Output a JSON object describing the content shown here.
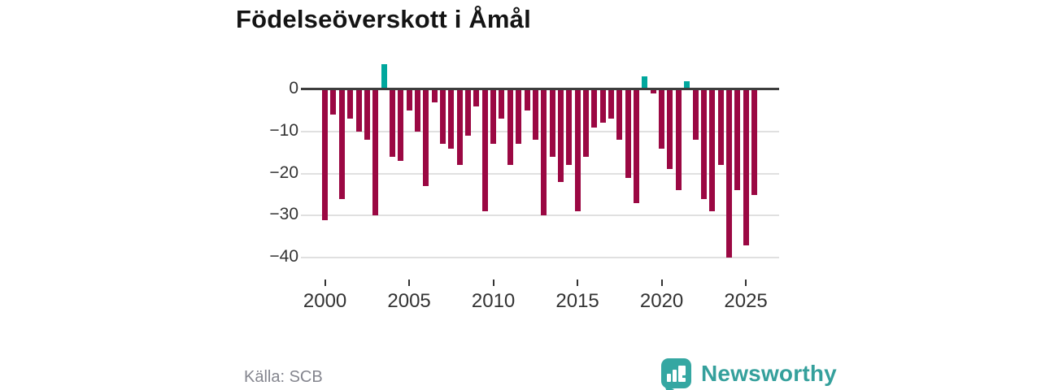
{
  "title": "Födelseöverskott i Åmål",
  "source": "Källa: SCB",
  "brand": {
    "name": "Newsworthy",
    "logo_icon": "speech-bubble-bar-chart-icon",
    "color": "#35a7a2"
  },
  "colors": {
    "negative_bar": "#9b0843",
    "positive_bar": "#00a79d",
    "zero_axis": "#3d3d3d",
    "gridline": "#e0e0e0",
    "axis_text": "#333333",
    "source_text": "#84858e"
  },
  "chart_data": {
    "type": "bar",
    "title": "Födelseöverskott i Åmål",
    "xlabel": "",
    "ylabel": "",
    "x_tick_labels": [
      "2000",
      "2005",
      "2010",
      "2015",
      "2020",
      "2025"
    ],
    "y_tick_labels": [
      "0",
      "−10",
      "−20",
      "−30",
      "−40"
    ],
    "y_tick_values": [
      0,
      -10,
      -20,
      -30,
      -40
    ],
    "ylim": [
      -44,
      8
    ],
    "grid": "horizontal",
    "legend": "none",
    "bar_period": "half-year",
    "periods": [
      "2000H1",
      "2000H2",
      "2001H1",
      "2001H2",
      "2002H1",
      "2002H2",
      "2003H1",
      "2003H2",
      "2004H1",
      "2004H2",
      "2005H1",
      "2005H2",
      "2006H1",
      "2006H2",
      "2007H1",
      "2007H2",
      "2008H1",
      "2008H2",
      "2009H1",
      "2009H2",
      "2010H1",
      "2010H2",
      "2011H1",
      "2011H2",
      "2012H1",
      "2012H2",
      "2013H1",
      "2013H2",
      "2014H1",
      "2014H2",
      "2015H1",
      "2015H2",
      "2016H1",
      "2016H2",
      "2017H1",
      "2017H2",
      "2018H1",
      "2018H2",
      "2019H1",
      "2019H2",
      "2020H1",
      "2020H2",
      "2021H1",
      "2021H2",
      "2022H1",
      "2022H2",
      "2023H1",
      "2023H2",
      "2024H1",
      "2024H2",
      "2025H1",
      "2025H2"
    ],
    "values": [
      -31,
      -6,
      -26,
      -7,
      -10,
      -12,
      -30,
      6,
      -16,
      -17,
      -5,
      -10,
      -23,
      -3,
      -13,
      -14,
      -18,
      -11,
      -4,
      -29,
      -13,
      -7,
      -18,
      -13,
      -5,
      -12,
      -30,
      -16,
      -22,
      -18,
      -29,
      -16,
      -9,
      -8,
      -7,
      -12,
      -21,
      -27,
      3,
      -1,
      -14,
      -19,
      -24,
      2,
      -12,
      -26,
      -29,
      -18,
      -40,
      -24,
      -37,
      -25
    ]
  }
}
